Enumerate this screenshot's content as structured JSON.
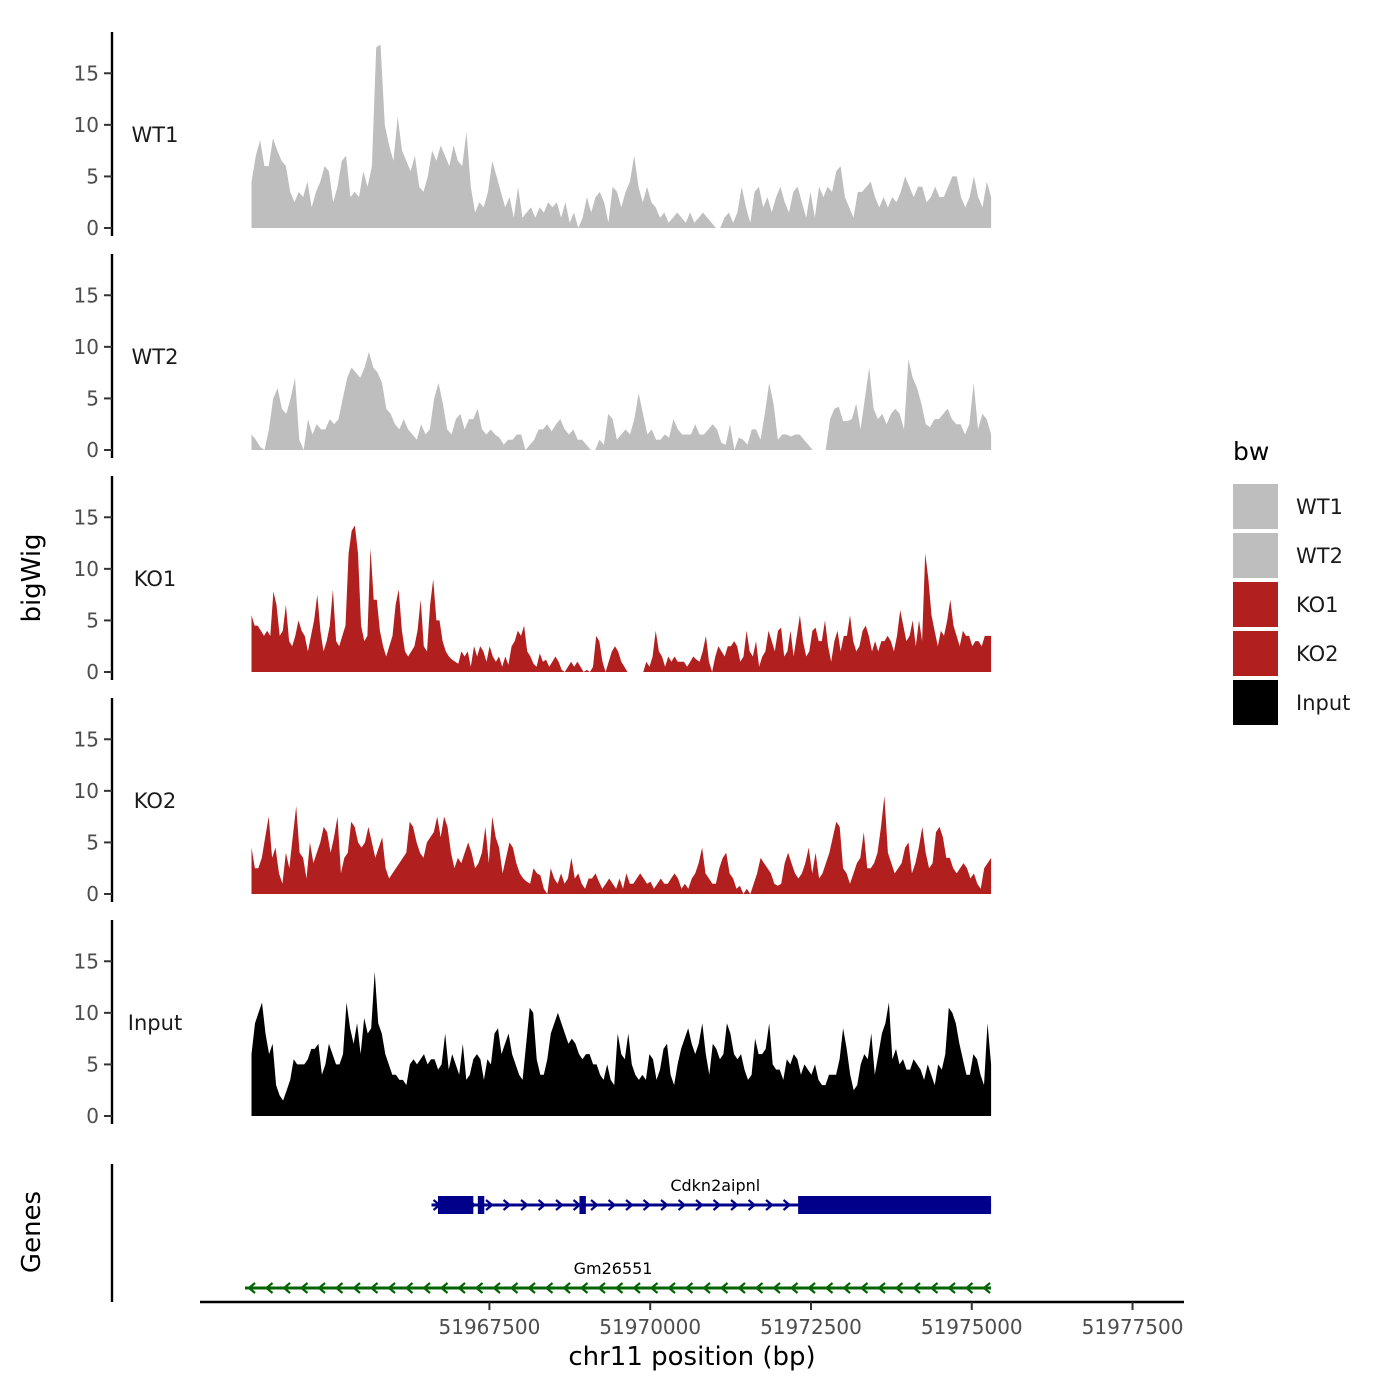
{
  "chart_data": {
    "type": "area",
    "title": "",
    "xlabel": "chr11 position (bp)",
    "ylabel": "bigWig",
    "genes_panel_label": "Genes",
    "xlim": [
      51963000,
      51978300
    ],
    "ylim": [
      0,
      19
    ],
    "x_ticks": [
      51967500,
      51970000,
      51972500,
      51975000,
      51977500
    ],
    "x_tick_labels": [
      "51967500",
      "51970000",
      "51972500",
      "51975000",
      "51977500"
    ],
    "y_ticks": [
      0,
      5,
      10,
      15
    ],
    "y_tick_labels": [
      "0",
      "5",
      "10",
      "15"
    ],
    "data_x_start": 51963800,
    "data_x_end": 51975300,
    "legend": {
      "title": "bw",
      "placement": "right",
      "items": [
        {
          "label": "WT1",
          "color": "#bebebe"
        },
        {
          "label": "WT2",
          "color": "#bebebe"
        },
        {
          "label": "KO1",
          "color": "#b21f1f"
        },
        {
          "label": "KO2",
          "color": "#b21f1f"
        },
        {
          "label": "Input",
          "color": "#000000"
        }
      ]
    },
    "series": [
      {
        "name": "WT1",
        "color": "#bebebe",
        "values": [
          4.5,
          7,
          8.5,
          6,
          6,
          8.7,
          7.5,
          6.5,
          6,
          3.5,
          2.5,
          3.5,
          3,
          4.5,
          2,
          3.5,
          4.5,
          6,
          5.5,
          2.5,
          4,
          6.5,
          7,
          3,
          3.5,
          3,
          5.5,
          4,
          6,
          17.5,
          17.8,
          10,
          8,
          6.5,
          10.8,
          7.5,
          6.5,
          5.5,
          7,
          4,
          3.5,
          5,
          7.5,
          6.5,
          8,
          7,
          6,
          8,
          6.5,
          6,
          9.3,
          4,
          1.5,
          2.5,
          2,
          3.5,
          6.5,
          5,
          3.5,
          2,
          3,
          1,
          4,
          1,
          1.5,
          2,
          1,
          2,
          1.5,
          2.5,
          2,
          2.5,
          1,
          2.5,
          0.5,
          1.5,
          0,
          1,
          3,
          1.5,
          3,
          3.5,
          2.5,
          0.5,
          4,
          3.5,
          2,
          3.5,
          4.5,
          7,
          4,
          2.5,
          4,
          2.5,
          2,
          1,
          1.5,
          0.5,
          1,
          1.5,
          1,
          0.5,
          1.5,
          0.5,
          1,
          1.5,
          1,
          0.5,
          0,
          0,
          1,
          1.5,
          0.5,
          1.5,
          4,
          2,
          0.5,
          3.5,
          4,
          2,
          3,
          1.5,
          3,
          4,
          2.5,
          1.5,
          3.5,
          4,
          2.5,
          1,
          3.5,
          1,
          4,
          3,
          4,
          3.5,
          5.5,
          6,
          3,
          2,
          1,
          3.5,
          3.5,
          4,
          4.5,
          3,
          2,
          3,
          2,
          3,
          2.5,
          3.5,
          5,
          4,
          3,
          4,
          4,
          2.5,
          3,
          4,
          3,
          3,
          4,
          5,
          5,
          3,
          2,
          3,
          5,
          3,
          2,
          4.5,
          3
        ]
      },
      {
        "name": "WT2",
        "color": "#bebebe",
        "values": [
          1.5,
          1,
          0.3,
          0,
          2,
          5,
          6,
          4,
          3.5,
          5,
          7,
          1,
          0,
          3,
          1.5,
          2.5,
          2,
          2,
          3,
          2.5,
          3,
          5,
          7,
          8,
          7.5,
          7,
          8,
          9.5,
          8,
          7.5,
          6.5,
          4,
          3.5,
          2.5,
          2,
          3,
          2,
          1.5,
          1,
          2.5,
          1.5,
          2,
          5,
          6.5,
          4.5,
          2,
          1.5,
          3,
          3.5,
          2,
          3,
          3,
          4,
          2,
          1.5,
          2,
          1.5,
          1.2,
          0.5,
          1,
          1,
          1.5,
          1.5,
          0,
          0.5,
          1,
          2,
          2,
          2.5,
          1.8,
          2.5,
          3,
          2,
          1.5,
          2,
          1,
          1,
          0.5,
          0,
          0,
          1,
          0.5,
          3.5,
          3,
          1,
          1.5,
          2,
          1.5,
          3,
          5.5,
          3.5,
          1.5,
          2,
          1,
          1,
          1.5,
          1.2,
          3,
          2,
          1.5,
          1.5,
          1.5,
          2.5,
          1.5,
          1.5,
          2,
          2.5,
          2,
          0.7,
          0.5,
          2.5,
          0,
          1.2,
          1,
          0.5,
          2,
          2,
          1,
          3.5,
          6.5,
          4.5,
          1,
          1.5,
          1.5,
          1.3,
          1.5,
          1.5,
          1,
          0.5,
          0,
          0,
          0,
          0,
          3,
          4,
          4.2,
          2.8,
          2.8,
          3,
          4.5,
          2,
          5,
          8,
          4,
          3,
          3.5,
          2.5,
          3.5,
          4,
          3.5,
          2,
          8.8,
          7,
          6,
          4.5,
          2.5,
          2.2,
          3,
          3,
          3.5,
          4,
          3,
          2.5,
          2.5,
          1.5,
          2.5,
          6.5,
          2,
          3.5,
          3,
          1.5
        ]
      },
      {
        "name": "KO1",
        "color": "#b21f1f",
        "values": [
          5.5,
          4.5,
          4.5,
          4,
          3.5,
          4,
          3.5,
          7.8,
          6.5,
          3.5,
          4,
          6.5,
          3,
          2.5,
          3.5,
          5,
          4,
          3.5,
          2,
          3.5,
          5,
          7.5,
          4,
          2,
          3,
          4.5,
          8,
          3,
          2.5,
          3.5,
          4.5,
          11.5,
          13.7,
          14.2,
          11.5,
          4.5,
          3,
          3.5,
          12,
          7,
          7,
          4,
          2.5,
          1.5,
          2.5,
          3.5,
          6.5,
          8,
          4,
          2,
          1.5,
          2,
          2.5,
          4,
          7,
          2.5,
          2,
          6.5,
          9,
          5,
          5,
          3,
          2,
          1.5,
          1.2,
          1,
          0.8,
          2,
          1.5,
          2,
          0.5,
          2.5,
          1.5,
          2.5,
          2,
          1,
          2.5,
          1.5,
          1,
          1.5,
          0.5,
          1.5,
          0.7,
          2.5,
          3,
          4,
          3.5,
          4.5,
          2,
          1.5,
          0.8,
          0.5,
          1.8,
          1,
          1.2,
          0.5,
          1,
          1.5,
          1,
          0.2,
          0,
          0.5,
          1,
          0.5,
          1,
          0.5,
          0,
          0.2,
          0,
          0.5,
          3.5,
          3,
          1,
          0,
          1,
          2,
          2.5,
          2,
          1,
          0.5,
          0,
          0,
          0,
          0,
          0,
          0,
          1,
          0.5,
          1.5,
          4,
          2,
          1.5,
          0.5,
          1.5,
          1,
          1.5,
          1,
          1,
          1,
          0.5,
          1,
          1.5,
          1.2,
          1,
          2,
          3.5,
          1,
          0,
          1.5,
          2.5,
          2,
          1.5,
          2.5,
          2.5,
          3,
          2.5,
          1,
          1.5,
          4,
          2,
          1.5,
          3,
          0.5,
          1.5,
          2,
          4,
          3,
          2,
          4,
          4.3,
          1.5,
          2,
          4,
          1.5,
          3.5,
          5.5,
          3,
          1.5,
          2,
          4,
          4.3,
          3,
          3,
          5,
          2.5,
          1,
          3,
          4,
          2,
          3.5,
          3.5,
          5.5,
          3,
          2,
          2.5,
          4,
          4.5,
          3.5,
          2,
          3,
          2,
          3,
          3,
          3.5,
          3,
          2,
          3.5,
          6,
          4.5,
          3,
          3.5,
          5,
          2.5,
          5,
          3,
          11.5,
          9,
          5.5,
          4,
          2.5,
          4,
          3.5,
          5,
          7,
          4.5,
          3.5,
          2.5,
          4,
          3.5,
          3.5,
          2.5,
          3,
          3,
          2.5,
          3.5,
          3.5,
          3.5
        ]
      },
      {
        "name": "KO2",
        "color": "#b21f1f",
        "values": [
          4.5,
          2.5,
          2.5,
          3.5,
          5.5,
          7.5,
          3.5,
          4.5,
          2,
          1,
          4,
          2.5,
          5.5,
          8.5,
          4,
          3.5,
          1.5,
          5,
          3,
          4,
          5,
          6.5,
          6,
          4,
          5.5,
          7.5,
          2,
          3.5,
          4,
          7,
          6.5,
          5,
          4.5,
          5,
          6.5,
          5,
          3.5,
          4.5,
          5.5,
          2.5,
          1.5,
          2,
          2.5,
          3,
          3.5,
          4,
          7,
          6.5,
          5,
          4,
          3.5,
          5,
          5.5,
          6,
          7.5,
          5.5,
          7.5,
          6.5,
          4,
          2.5,
          3.5,
          3,
          4,
          5,
          4,
          2.5,
          3,
          4,
          6.5,
          3,
          7.5,
          5.5,
          4.5,
          2,
          3.5,
          5,
          4.5,
          3,
          2,
          1.5,
          1.2,
          1,
          2.5,
          2,
          1.8,
          0.5,
          0,
          2.5,
          1.5,
          1,
          2,
          1,
          1.5,
          3.5,
          1.5,
          2,
          1,
          0.5,
          1.5,
          1.5,
          2,
          1.2,
          0.5,
          1,
          1.5,
          1,
          0.5,
          1.5,
          0.5,
          2,
          1,
          1,
          1.5,
          2,
          1.5,
          1,
          1.2,
          0.5,
          1,
          1.5,
          1,
          1,
          1.5,
          2,
          1.5,
          0.5,
          1,
          0.5,
          1.5,
          2,
          3,
          4.5,
          2,
          1.5,
          1,
          1,
          2.5,
          3.5,
          4,
          2,
          1.5,
          0.5,
          0.8,
          0,
          0.5,
          0,
          1,
          2,
          3.5,
          3,
          2.5,
          2,
          1,
          0.8,
          1,
          3,
          4,
          3,
          2,
          1.5,
          2,
          3,
          4.5,
          2,
          4,
          1.5,
          2,
          3,
          4,
          5.5,
          7,
          6.5,
          2.5,
          2,
          1,
          2,
          3,
          3.5,
          6,
          2.5,
          2.5,
          3,
          4,
          6.5,
          9.5,
          4,
          3,
          2,
          2.5,
          3,
          4.5,
          5,
          2,
          3,
          4.5,
          6.5,
          4,
          2.5,
          3,
          6,
          6.5,
          5.5,
          3.5,
          3.5,
          2.5,
          2,
          2.5,
          3,
          2.5,
          1.5,
          2,
          1,
          0.5,
          2.5,
          3,
          3.5
        ]
      },
      {
        "name": "Input",
        "color": "#000000",
        "values": [
          6,
          9,
          10,
          11,
          8,
          6,
          7,
          3,
          2,
          1.5,
          2.5,
          3.5,
          5.5,
          5,
          5,
          5,
          5.5,
          6.5,
          6.5,
          7,
          4,
          5,
          7,
          6,
          5,
          5,
          6,
          11,
          8.5,
          7,
          9,
          6,
          9.5,
          8,
          8.5,
          14,
          9,
          8,
          6,
          5,
          4,
          4,
          3.5,
          3.5,
          3,
          5,
          5.5,
          5,
          5.5,
          6,
          5,
          5.5,
          5.5,
          4.5,
          5,
          8,
          4.5,
          6,
          5,
          4,
          7,
          3.5,
          4,
          5.5,
          6,
          5.5,
          3.5,
          5.5,
          5,
          8,
          8.5,
          6,
          7,
          8,
          6,
          5,
          4,
          3.5,
          7,
          10.5,
          10,
          5.5,
          4,
          4,
          5.5,
          8,
          9,
          10,
          9,
          8,
          7,
          7.5,
          7,
          6,
          5.5,
          6,
          6,
          5,
          5,
          4,
          3.5,
          5,
          3.5,
          3,
          8,
          6,
          5.5,
          8,
          5,
          4,
          3.5,
          4,
          3.5,
          6,
          5.5,
          3.5,
          4.5,
          6.5,
          7,
          4,
          3,
          5,
          6.5,
          7.5,
          8.5,
          7,
          6,
          7,
          9,
          6,
          4,
          7,
          6.5,
          5.5,
          6,
          9,
          8,
          6,
          5.5,
          6,
          4.5,
          3.5,
          4,
          7.5,
          6,
          6,
          6.5,
          9,
          5,
          4.5,
          4.5,
          3.5,
          5.5,
          5,
          6,
          5.5,
          4,
          5,
          4.5,
          4,
          5,
          3.5,
          3,
          3,
          4,
          4,
          4,
          5.5,
          8.5,
          6.5,
          4,
          2.5,
          3,
          5,
          6,
          5.5,
          8,
          4,
          6,
          8,
          9,
          11,
          5.5,
          6.5,
          5,
          5.5,
          4.5,
          4.5,
          5.5,
          5,
          4.5,
          3.5,
          5,
          4,
          3,
          5,
          4.5,
          6,
          10.5,
          10,
          9,
          7,
          5.5,
          4,
          4,
          6,
          5.5,
          4,
          3,
          9,
          5
        ]
      }
    ],
    "genes": [
      {
        "name": "Cdkn2aipnl",
        "strand": "+",
        "color": "#00008b",
        "start": 51966600,
        "end": 51975300,
        "exons": [
          [
            51966700,
            51967250
          ],
          [
            51967320,
            51967420
          ],
          [
            51968900,
            51969000
          ],
          [
            51972300,
            51975300
          ]
        ]
      },
      {
        "name": "Gm26551",
        "strand": "-",
        "color": "#006400",
        "start": 51963700,
        "end": 51975300,
        "exons": []
      }
    ]
  }
}
